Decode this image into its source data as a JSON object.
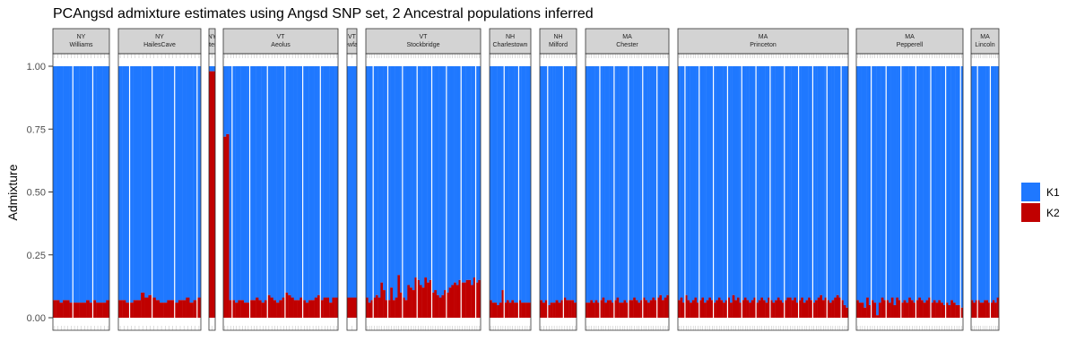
{
  "chart_data": {
    "type": "bar",
    "stacked": true,
    "title": "PCAngsd admixture estimates using Angsd SNP set, 2 Ancestral populations inferred",
    "xlabel": "",
    "ylabel": "Admixture",
    "ylim": [
      0,
      1
    ],
    "yticks": [
      "0.00",
      "0.25",
      "0.50",
      "0.75",
      "1.00"
    ],
    "grid": false,
    "legend": {
      "position": "right",
      "entries": [
        "K1",
        "K2"
      ]
    },
    "colors": {
      "K1": "#1f78ff",
      "K2": "#c00000",
      "strip_fill": "#d3d3d3",
      "separator": "#ffffff"
    },
    "panels": [
      {
        "line1": "NY",
        "line2": "Williams",
        "K2": [
          0.07,
          0.07,
          0.06,
          0.07,
          0.07,
          0.06,
          0.06,
          0.06,
          0.06,
          0.06,
          0.07,
          0.06,
          0.07,
          0.06,
          0.06,
          0.06,
          0.07
        ]
      },
      {
        "line1": "NY",
        "line2": "HailesCave",
        "K2": [
          0.07,
          0.07,
          0.06,
          0.06,
          0.07,
          0.07,
          0.1,
          0.08,
          0.09,
          0.08,
          0.07,
          0.06,
          0.06,
          0.07,
          0.07,
          0.06,
          0.07,
          0.07,
          0.08,
          0.06,
          0.07,
          0.08
        ]
      },
      {
        "line1": "NY",
        "line2": "Chestertown",
        "K2": [
          0.98
        ]
      },
      {
        "line1": "VT",
        "line2": "Aeolus",
        "K2": [
          0.72,
          0.73,
          0.07,
          0.07,
          0.06,
          0.07,
          0.07,
          0.06,
          0.06,
          0.07,
          0.07,
          0.08,
          0.07,
          0.06,
          0.07,
          0.09,
          0.08,
          0.07,
          0.06,
          0.07,
          0.08,
          0.1,
          0.09,
          0.08,
          0.07,
          0.07,
          0.08,
          0.07,
          0.06,
          0.07,
          0.07,
          0.08,
          0.09,
          0.07,
          0.08,
          0.08,
          0.06,
          0.08,
          0.08
        ]
      },
      {
        "line1": "VT",
        "line2": "Mewfane",
        "K2": [
          0.08
        ]
      },
      {
        "line1": "VT",
        "line2": "Stockbridge",
        "K2": [
          0.08,
          0.06,
          0.07,
          0.08,
          0.09,
          0.08,
          0.14,
          0.11,
          0.07,
          0.07,
          0.12,
          0.07,
          0.08,
          0.17,
          0.1,
          0.08,
          0.07,
          0.13,
          0.12,
          0.11,
          0.16,
          0.15,
          0.13,
          0.12,
          0.16,
          0.14,
          0.15,
          0.1,
          0.11,
          0.09,
          0.08,
          0.09,
          0.11,
          0.1,
          0.12,
          0.13,
          0.14,
          0.13,
          0.15,
          0.14,
          0.14,
          0.15,
          0.15,
          0.13,
          0.16,
          0.14,
          0.15
        ]
      },
      {
        "line1": "NH",
        "line2": "Charlestown",
        "K2": [
          0.07,
          0.06,
          0.06,
          0.05,
          0.06,
          0.11,
          0.06,
          0.07,
          0.06,
          0.07,
          0.06,
          0.06,
          0.07,
          0.06,
          0.06,
          0.06,
          0.06
        ]
      },
      {
        "line1": "NH",
        "line2": "Milford",
        "K2": [
          0.07,
          0.06,
          0.07,
          0.05,
          0.06,
          0.06,
          0.07,
          0.06,
          0.07,
          0.08,
          0.07,
          0.07,
          0.07,
          0.06
        ]
      },
      {
        "line1": "MA",
        "line2": "Chester",
        "K2": [
          0.06,
          0.06,
          0.07,
          0.06,
          0.07,
          0.06,
          0.07,
          0.08,
          0.06,
          0.07,
          0.07,
          0.06,
          0.07,
          0.08,
          0.06,
          0.06,
          0.07,
          0.06,
          0.07,
          0.07,
          0.08,
          0.07,
          0.06,
          0.07,
          0.08,
          0.07,
          0.06,
          0.07,
          0.08,
          0.07,
          0.08,
          0.09,
          0.07,
          0.08,
          0.09
        ]
      },
      {
        "line1": "MA",
        "line2": "Princeton",
        "K2": [
          0.07,
          0.08,
          0.06,
          0.09,
          0.07,
          0.06,
          0.07,
          0.08,
          0.06,
          0.07,
          0.08,
          0.06,
          0.07,
          0.08,
          0.07,
          0.06,
          0.07,
          0.08,
          0.07,
          0.06,
          0.07,
          0.08,
          0.06,
          0.09,
          0.07,
          0.08,
          0.06,
          0.07,
          0.08,
          0.07,
          0.06,
          0.07,
          0.08,
          0.06,
          0.07,
          0.08,
          0.07,
          0.06,
          0.08,
          0.07,
          0.06,
          0.07,
          0.08,
          0.07,
          0.06,
          0.07,
          0.08,
          0.08,
          0.07,
          0.08,
          0.06,
          0.07,
          0.08,
          0.06,
          0.07,
          0.08,
          0.07,
          0.06,
          0.07,
          0.08,
          0.09,
          0.07,
          0.08,
          0.07,
          0.06,
          0.07,
          0.08,
          0.09,
          0.08,
          0.07,
          0.05,
          0.04
        ]
      },
      {
        "line1": "MA",
        "line2": "Pepperell",
        "K2": [
          0.07,
          0.06,
          0.06,
          0.04,
          0.08,
          0.05,
          0.07,
          0.06,
          0.01,
          0.06,
          0.08,
          0.07,
          0.07,
          0.06,
          0.08,
          0.05,
          0.08,
          0.07,
          0.06,
          0.07,
          0.06,
          0.08,
          0.07,
          0.06,
          0.07,
          0.08,
          0.07,
          0.06,
          0.07,
          0.08,
          0.06,
          0.07,
          0.06,
          0.07,
          0.06,
          0.05,
          0.06,
          0.05,
          0.07,
          0.06,
          0.05,
          0.05,
          0.04
        ]
      },
      {
        "line1": "MA",
        "line2": "Lincoln",
        "K2": [
          0.07,
          0.06,
          0.07,
          0.07,
          0.06,
          0.06,
          0.07,
          0.07,
          0.06,
          0.06,
          0.07,
          0.06,
          0.08
        ]
      }
    ]
  }
}
